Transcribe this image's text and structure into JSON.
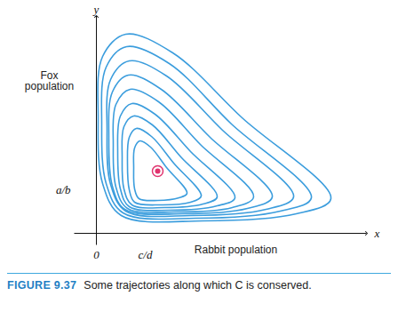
{
  "chart_data": {
    "type": "line",
    "figure_label": "FIGURE 9.37",
    "caption": "Some trajectories along which C is conserved.",
    "x_label": "Rabbit population",
    "y_label": "Fox population",
    "x_axis_name": "x",
    "y_axis_name": "y",
    "xlim": [
      -25,
      304
    ],
    "ylim": [
      -13,
      244
    ],
    "xticks": [
      {
        "value": 0,
        "label": "0"
      },
      {
        "value": 55,
        "label": "c/d"
      }
    ],
    "yticks": [
      {
        "value": 49,
        "label": "a/b"
      }
    ],
    "color": "#3b9ddd",
    "series": [
      {
        "x": [
          33,
          7,
          2,
          7,
          28,
          120,
          225,
          264,
          164,
          86
        ],
        "y": [
          224,
          199,
          130,
          56,
          20,
          14,
          22,
          39,
          130,
          203
        ]
      },
      {
        "x": [
          34,
          11,
          6,
          11,
          30,
          112,
          207,
          242,
          152,
          82
        ],
        "y": [
          210,
          187,
          123,
          56,
          23,
          17,
          25,
          40,
          123,
          191
        ]
      },
      {
        "x": [
          37,
          16,
          12,
          16,
          33,
          107,
          191,
          222,
          142,
          79
        ],
        "y": [
          194,
          173,
          116,
          55,
          25,
          20,
          27,
          41,
          116,
          177
        ]
      },
      {
        "x": [
          36,
          18,
          14,
          18,
          32,
          97,
          170,
          198,
          128,
          73
        ],
        "y": [
          178,
          159,
          108,
          53,
          27,
          22,
          28,
          41,
          108,
          162
        ]
      },
      {
        "x": [
          38,
          22,
          19,
          22,
          35,
          90,
          153,
          177,
          117,
          70
        ],
        "y": [
          162,
          145,
          100,
          52,
          28,
          24,
          29,
          41,
          100,
          148
        ]
      },
      {
        "x": [
          40,
          27,
          24,
          27,
          37,
          83,
          136,
          156,
          106,
          66
        ],
        "y": [
          146,
          132,
          92,
          50,
          30,
          26,
          31,
          40,
          92,
          134
        ]
      },
      {
        "x": [
          42,
          31,
          29,
          31,
          40,
          77,
          120,
          136,
          95,
          63
        ],
        "y": [
          132,
          120,
          86,
          50,
          32,
          29,
          33,
          41,
          86,
          122
        ]
      },
      {
        "x": [
          45,
          37,
          35,
          37,
          43,
          72,
          106,
          118,
          87,
          62
        ],
        "y": [
          118,
          108,
          79,
          49,
          35,
          32,
          35,
          42,
          79,
          109
        ]
      },
      {
        "x": [
          49,
          43,
          42,
          43,
          48,
          69,
          93,
          102,
          79,
          61
        ],
        "y": [
          104,
          96,
          74,
          50,
          39,
          37,
          40,
          45,
          74,
          97
        ]
      }
    ],
    "point": {
      "x": 69,
      "y": 70,
      "color": "#e0336e",
      "marker": "target"
    }
  }
}
